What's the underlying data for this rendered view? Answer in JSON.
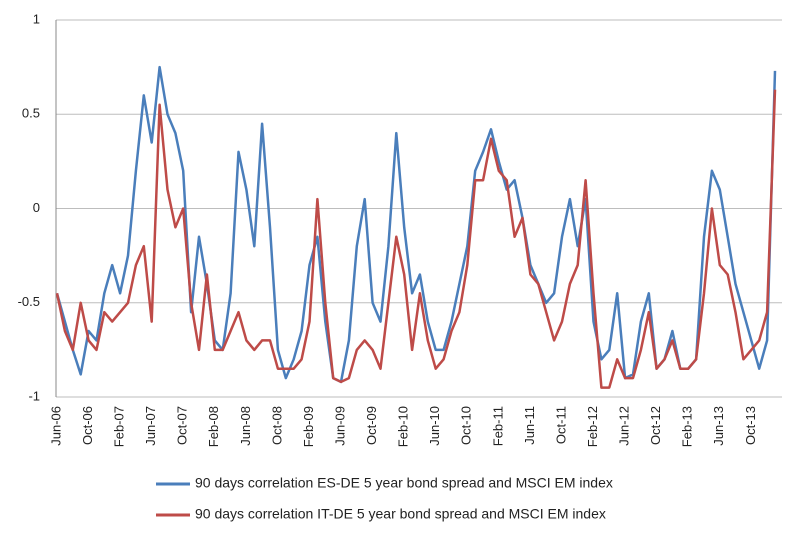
{
  "chart_data": {
    "type": "line",
    "categories": [
      "Jun-06",
      null,
      null,
      null,
      "Oct-06",
      null,
      null,
      null,
      "Feb-07",
      null,
      null,
      null,
      "Jun-07",
      null,
      null,
      null,
      "Oct-07",
      null,
      null,
      null,
      "Feb-08",
      null,
      null,
      null,
      "Jun-08",
      null,
      null,
      null,
      "Oct-08",
      null,
      null,
      null,
      "Feb-09",
      null,
      null,
      null,
      "Jun-09",
      null,
      null,
      null,
      "Oct-09",
      null,
      null,
      null,
      "Feb-10",
      null,
      null,
      null,
      "Jun-10",
      null,
      null,
      null,
      "Oct-10",
      null,
      null,
      null,
      "Feb-11",
      null,
      null,
      null,
      "Jun-11",
      null,
      null,
      null,
      "Oct-11",
      null,
      null,
      null,
      "Feb-12",
      null,
      null,
      null,
      "Jun-12",
      null,
      null,
      null,
      "Oct-12",
      null,
      null,
      null,
      "Feb-13",
      null,
      null,
      null,
      "Jun-13",
      null,
      null,
      null,
      "Oct-13",
      null,
      null,
      null
    ],
    "series": [
      {
        "name": "90 days correlation ES-DE 5 year bond spread and MSCI EM index",
        "color": "#4a7ebb",
        "values": [
          -0.45,
          -0.6,
          -0.75,
          -0.88,
          -0.65,
          -0.7,
          -0.45,
          -0.3,
          -0.45,
          -0.25,
          0.2,
          0.6,
          0.35,
          0.75,
          0.5,
          0.4,
          0.2,
          -0.55,
          -0.15,
          -0.4,
          -0.7,
          -0.75,
          -0.45,
          0.3,
          0.1,
          -0.2,
          0.45,
          -0.1,
          -0.75,
          -0.9,
          -0.8,
          -0.65,
          -0.3,
          -0.15,
          -0.6,
          -0.9,
          -0.92,
          -0.7,
          -0.2,
          0.05,
          -0.5,
          -0.6,
          -0.2,
          0.4,
          -0.1,
          -0.45,
          -0.35,
          -0.6,
          -0.75,
          -0.75,
          -0.6,
          -0.4,
          -0.2,
          0.2,
          0.3,
          0.42,
          0.25,
          0.1,
          0.15,
          -0.05,
          -0.3,
          -0.4,
          -0.5,
          -0.45,
          -0.15,
          0.05,
          -0.2,
          0.05,
          -0.6,
          -0.8,
          -0.75,
          -0.45,
          -0.9,
          -0.88,
          -0.6,
          -0.45,
          -0.85,
          -0.8,
          -0.65,
          -0.85,
          -0.85,
          -0.8,
          -0.15,
          0.2,
          0.1,
          -0.15,
          -0.4,
          -0.55,
          -0.7,
          -0.85,
          -0.7,
          0.73
        ]
      },
      {
        "name": "90 days correlation IT-DE 5 year bond spread and MSCI EM index",
        "color": "#be4b48",
        "values": [
          -0.45,
          -0.65,
          -0.75,
          -0.5,
          -0.7,
          -0.75,
          -0.55,
          -0.6,
          -0.55,
          -0.5,
          -0.3,
          -0.2,
          -0.6,
          0.55,
          0.1,
          -0.1,
          0,
          -0.5,
          -0.75,
          -0.35,
          -0.75,
          -0.75,
          -0.65,
          -0.55,
          -0.7,
          -0.75,
          -0.7,
          -0.7,
          -0.85,
          -0.85,
          -0.85,
          -0.8,
          -0.6,
          0.05,
          -0.5,
          -0.9,
          -0.92,
          -0.9,
          -0.75,
          -0.7,
          -0.75,
          -0.85,
          -0.5,
          -0.15,
          -0.35,
          -0.75,
          -0.45,
          -0.7,
          -0.85,
          -0.8,
          -0.65,
          -0.55,
          -0.3,
          0.15,
          0.15,
          0.37,
          0.2,
          0.15,
          -0.15,
          -0.05,
          -0.35,
          -0.4,
          -0.55,
          -0.7,
          -0.6,
          -0.4,
          -0.3,
          0.15,
          -0.45,
          -0.95,
          -0.95,
          -0.8,
          -0.9,
          -0.9,
          -0.75,
          -0.55,
          -0.85,
          -0.8,
          -0.7,
          -0.85,
          -0.85,
          -0.8,
          -0.45,
          0,
          -0.3,
          -0.35,
          -0.55,
          -0.8,
          -0.75,
          -0.7,
          -0.55,
          0.63
        ]
      }
    ],
    "ylim": [
      -1,
      1
    ],
    "yticks": [
      -1,
      -0.5,
      0,
      0.5,
      1
    ],
    "grid": true
  }
}
